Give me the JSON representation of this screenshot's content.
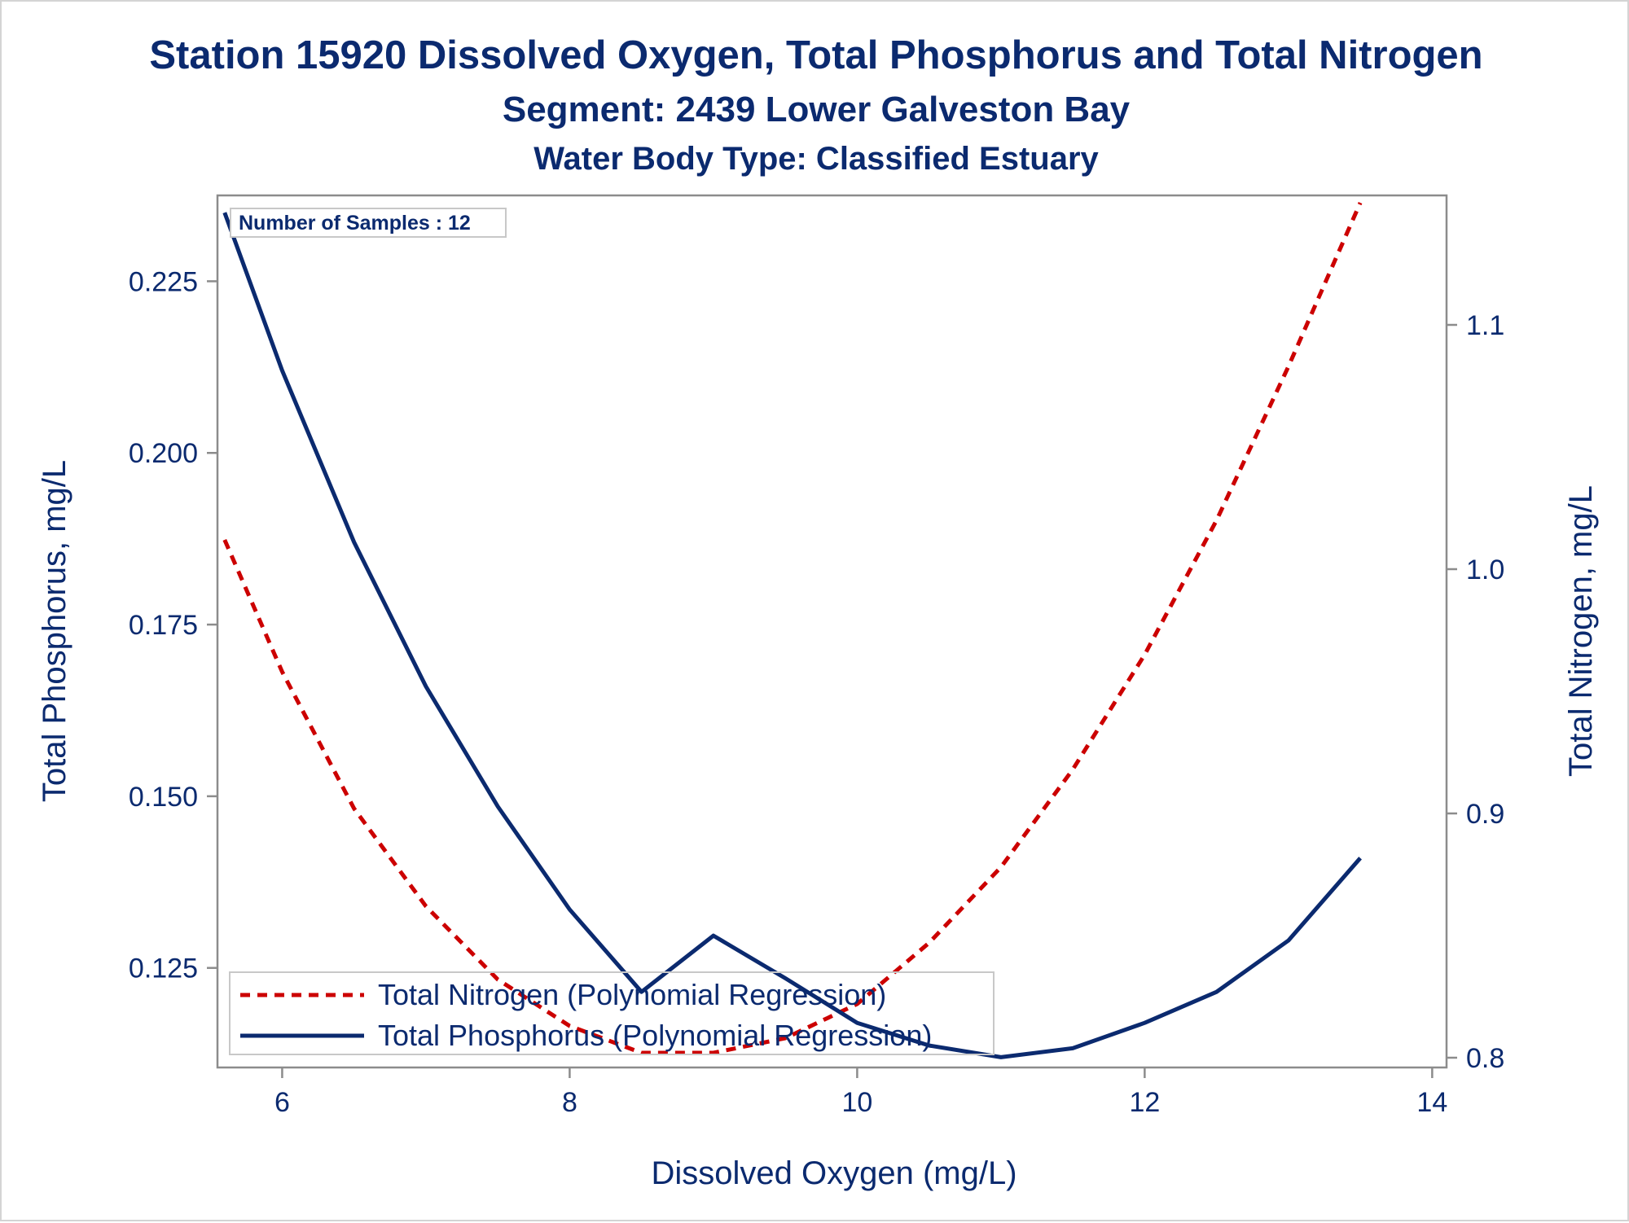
{
  "colors": {
    "text": "#0b2a6f",
    "axis": "#8c8c8c",
    "nitrogen": "#cc0000",
    "phosphorus": "#0b2a6f",
    "background": "#ffffff"
  },
  "chart_data": {
    "type": "line",
    "title": "Station 15920  Dissolved Oxygen, Total Phosphorus and Total Nitrogen",
    "subtitle": "Segment: 2439  Lower Galveston Bay",
    "subtitle2": "Water Body Type: Classified Estuary",
    "annotation": "Number of Samples : 12",
    "xlabel": "Dissolved Oxygen (mg/L)",
    "ylabel": "Total Phosphorus, mg/L",
    "y2label": "Total Nitrogen, mg/L",
    "xlim": [
      5.55,
      14.1
    ],
    "ylim": [
      0.1105,
      0.2375
    ],
    "y2lim": [
      0.796,
      1.153
    ],
    "xticks": [
      6,
      8,
      10,
      12,
      14
    ],
    "yticks": [
      0.125,
      0.15,
      0.175,
      0.2,
      0.225
    ],
    "y2ticks": [
      0.8,
      0.9,
      1.0,
      1.1
    ],
    "xtick_labels": [
      "6",
      "8",
      "10",
      "12",
      "14"
    ],
    "ytick_labels": [
      "0.125",
      "0.150",
      "0.175",
      "0.200",
      "0.225"
    ],
    "y2tick_labels": [
      "0.8",
      "0.9",
      "1.0",
      "1.1"
    ],
    "grid": false,
    "legend_position": "bottom-left",
    "series": [
      {
        "name": "Total Nitrogen (Polynomial Regression)",
        "axis": "y2",
        "style": "dashed",
        "x": [
          5.6,
          6.0,
          6.5,
          7.0,
          7.5,
          8.0,
          8.5,
          9.0,
          9.5,
          10.0,
          10.5,
          11.0,
          11.5,
          12.0,
          12.5,
          13.0,
          13.5
        ],
        "y": [
          1.012,
          0.958,
          0.902,
          0.862,
          0.832,
          0.813,
          0.802,
          0.802,
          0.808,
          0.822,
          0.847,
          0.878,
          0.918,
          0.965,
          1.02,
          1.083,
          1.15
        ]
      },
      {
        "name": "Total Phosphorus (Polynomial Regression)",
        "axis": "y",
        "style": "solid",
        "x": [
          5.6,
          6.0,
          6.5,
          7.0,
          7.5,
          8.0,
          8.5,
          9.0,
          9.5,
          10.0,
          10.5,
          11.0,
          11.5,
          12.0,
          12.5,
          13.0,
          13.5
        ],
        "y": [
          0.235,
          0.212,
          0.187,
          0.166,
          0.1485,
          0.1335,
          0.1215,
          0.1297,
          0.1235,
          0.117,
          0.1137,
          0.112,
          0.1133,
          0.117,
          0.1215,
          0.129,
          0.141
        ]
      }
    ]
  }
}
